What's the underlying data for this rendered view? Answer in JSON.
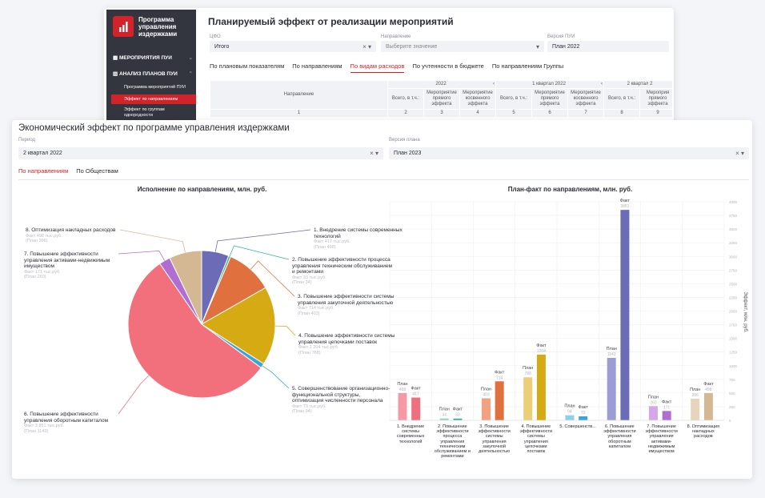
{
  "sidebar": {
    "logo": "Программа управления издержками",
    "menu": [
      "МЕРОПРИЯТИЯ ПУИ",
      "АНАЛИЗ ПЛАНОВ ПУИ"
    ],
    "submenu": [
      "Программа мероприятий ПУИ",
      "Эффект по направлениям",
      "Эффект по группам однородности"
    ]
  },
  "back": {
    "title": "Планируемый эффект от реализации мероприятий",
    "filters": [
      {
        "label": "ЦФО",
        "value": "Итого"
      },
      {
        "label": "Направление",
        "value": "Выберите значение"
      },
      {
        "label": "Версия ПУИ",
        "value": "План 2022"
      }
    ],
    "tabs": [
      "По плановым показателям",
      "По направлениям",
      "По видам расходов",
      "По учтенности в бюджете",
      "По направлениям Группы"
    ],
    "table": {
      "row_header": "Направление",
      "groups": [
        "2022",
        "1 квартал 2022",
        "2 квартал 2"
      ],
      "columns": [
        "Всего, в т.ч.:",
        "Мероприятие прямого эффекта",
        "Мероприятие косвенного эффекта",
        "Всего, в т.ч.:",
        "Мероприятие прямого эффекта",
        "Мероприятие косвенного эффекта",
        "Всего, в т.ч.:",
        "Мероприя прямого эффекта"
      ],
      "numbers": [
        1,
        2,
        3,
        4,
        5,
        6,
        7,
        8,
        9
      ]
    }
  },
  "front": {
    "title": "Экономический эффект по программе управления издержками",
    "filters": [
      {
        "label": "Период",
        "value": "2 квартал 2022"
      },
      {
        "label": "Версия плана",
        "value": "План 2023"
      }
    ],
    "tabs": [
      "По направлениям",
      "По Обществам"
    ]
  },
  "chart_data": [
    {
      "type": "pie",
      "title": "Исполнение по направлениям, млн. руб.",
      "categories": [
        "1. Внедрение системы современных технологий",
        "2. Повышение эффективности процесса управления техническим обслуживанием и ремонтами",
        "3. Повышение эффективности системы управления закупочной деятельностью",
        "4. Повышение эффективности системы управления цепочками поставок",
        "5. Совершенствование организационно-функциональной структуры, оптимизация численности персонала",
        "6. Повышение эффективности управления оборотным капиталом",
        "7. Повышение эффективности управления активами-недвижимым имуществом",
        "8. Оптимизация накладных расходов"
      ],
      "values": [
        417,
        33,
        714,
        1204,
        73,
        3851,
        171,
        498
      ],
      "value_labels": [
        "Факт 417 тыс.руб.",
        "Факт 33 тыс.руб.",
        "Факт 714 тыс.руб.",
        "Факт 1 204 тыс.руб.",
        "Факт 73 тыс.руб.",
        "Факт 3 851 тыс.руб.",
        "Факт 171 тыс.руб.",
        "Факт 498 тыс.руб."
      ],
      "plan_labels": [
        "(План 498)",
        "(План 34)",
        "(План 403)",
        "(План 788)",
        "(План 94)",
        "(План 1143)",
        "(План 260)",
        "(План 396)"
      ],
      "colors": [
        "#6b6bb8",
        "#3cb49c",
        "#e0703e",
        "#d6aa12",
        "#3aa6d6",
        "#f2707c",
        "#b06fd0",
        "#d4b894"
      ]
    },
    {
      "type": "bar",
      "title": "План-факт по направлениям, млн. руб.",
      "y_label": "Эффект, млн. руб.",
      "categories": [
        "1. Внедрение системы современных технологий",
        "2. Повышение эффективности процесса управления техническим обслуживанием и ремонтами",
        "3. Повышение эффективности системы управления закупочной деятельностью",
        "4. Повышение эффективности системы управления цепочками поставок",
        "5. Совершенств...",
        "6. Повышение эффективности управления оборотным капиталом",
        "7. Повышение эффективности управления активами-недвижимым имуществом",
        "8. Оптимизация накладных расходов"
      ],
      "series": [
        {
          "name": "План",
          "colors": [
            "#f59aa4",
            "#8fd6c4",
            "#f2a27e",
            "#ecce78",
            "#8ccfee",
            "#9d9dd6",
            "#d6a6ea",
            "#e6d4bd"
          ],
          "values": [
            498,
            34,
            403,
            788,
            94,
            1143,
            260,
            396
          ]
        },
        {
          "name": "Факт",
          "colors": [
            "#ee6f7e",
            "#3cb49c",
            "#e0703e",
            "#d6aa12",
            "#3aa6d6",
            "#6b6bb8",
            "#b06fd0",
            "#d4b894"
          ],
          "values": [
            417,
            33,
            714,
            1204,
            73,
            3851,
            171,
            498
          ]
        }
      ],
      "ylim": [
        0,
        4000
      ],
      "yticks": [
        0,
        250,
        500,
        750,
        1000,
        1250,
        1500,
        1750,
        2000,
        2250,
        2500,
        2750,
        3000,
        3250,
        3500,
        3750,
        4000
      ],
      "grid": true
    }
  ]
}
